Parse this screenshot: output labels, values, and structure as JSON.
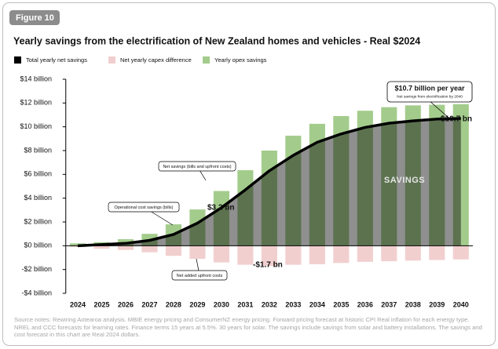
{
  "chart_data": {
    "type": "bar",
    "figure_label": "Figure 10",
    "title": "Yearly savings from the electrification of New Zealand homes and vehicles - Real $2024",
    "categories": [
      "2024",
      "2025",
      "2026",
      "2027",
      "2028",
      "2029",
      "2030",
      "2031",
      "2032",
      "2033",
      "2034",
      "2035",
      "2036",
      "2037",
      "2038",
      "2039",
      "2040"
    ],
    "series": [
      {
        "name": "Total yearly net savings",
        "color": "#000000",
        "kind": "line",
        "values": [
          0,
          0.1,
          0.2,
          0.45,
          0.95,
          1.9,
          3.2,
          4.7,
          6.3,
          7.6,
          8.7,
          9.4,
          9.95,
          10.3,
          10.5,
          10.65,
          10.7
        ]
      },
      {
        "name": "Net yearly capex difference",
        "color": "#f2cfcf",
        "kind": "bar",
        "values": [
          -0.1,
          -0.25,
          -0.35,
          -0.55,
          -0.85,
          -1.1,
          -1.4,
          -1.6,
          -1.7,
          -1.6,
          -1.55,
          -1.45,
          -1.35,
          -1.3,
          -1.25,
          -1.2,
          -1.15
        ]
      },
      {
        "name": "Yearly opex savings",
        "color": "#a3cc8c",
        "kind": "bar",
        "values": [
          0.2,
          0.3,
          0.55,
          1.0,
          1.8,
          3.05,
          4.6,
          6.35,
          8.0,
          9.25,
          10.25,
          10.9,
          11.35,
          11.65,
          11.8,
          11.85,
          11.9
        ]
      }
    ],
    "ylim": [
      -4,
      14
    ],
    "yticks": [
      {
        "value": -4,
        "label": "-$4 billion"
      },
      {
        "value": -2,
        "label": "-$2 billion"
      },
      {
        "value": 0,
        "label": "$0 billion"
      },
      {
        "value": 2,
        "label": "$2 billion"
      },
      {
        "value": 4,
        "label": "$4 billion"
      },
      {
        "value": 6,
        "label": "$6 billion"
      },
      {
        "value": 8,
        "label": "$8 billion"
      },
      {
        "value": 10,
        "label": "$10 billion"
      },
      {
        "value": 12,
        "label": "$12 billion"
      },
      {
        "value": 14,
        "label": "$14 billion"
      }
    ],
    "grid": false,
    "legend": "top-left",
    "annotations": [
      "Operational cost savings (bills)",
      "Net savings (bills and upfront costs)",
      "Net added upfront costs",
      "$3.2 bn",
      "-$1.7 bn",
      "$10.7 bn",
      "SAVINGS"
    ],
    "callout": {
      "title": "$10.7 billion per year",
      "subtitle": "Net savings from electrification by 2040"
    },
    "source": "Source notes: Rewiring Aotearoa analysis. MBIE energy pricing and ConsumerNZ energy pricing. Forward pricing forecast at historic CPI Real inflation for each energy type. NREL and CCC forecasts for learning rates. Finance terms 15 years at 5.5%. 30 years for solar. The savings include savings from solar and battery installations. The savings and cost forecast in this chart are Real 2024 dollars."
  }
}
